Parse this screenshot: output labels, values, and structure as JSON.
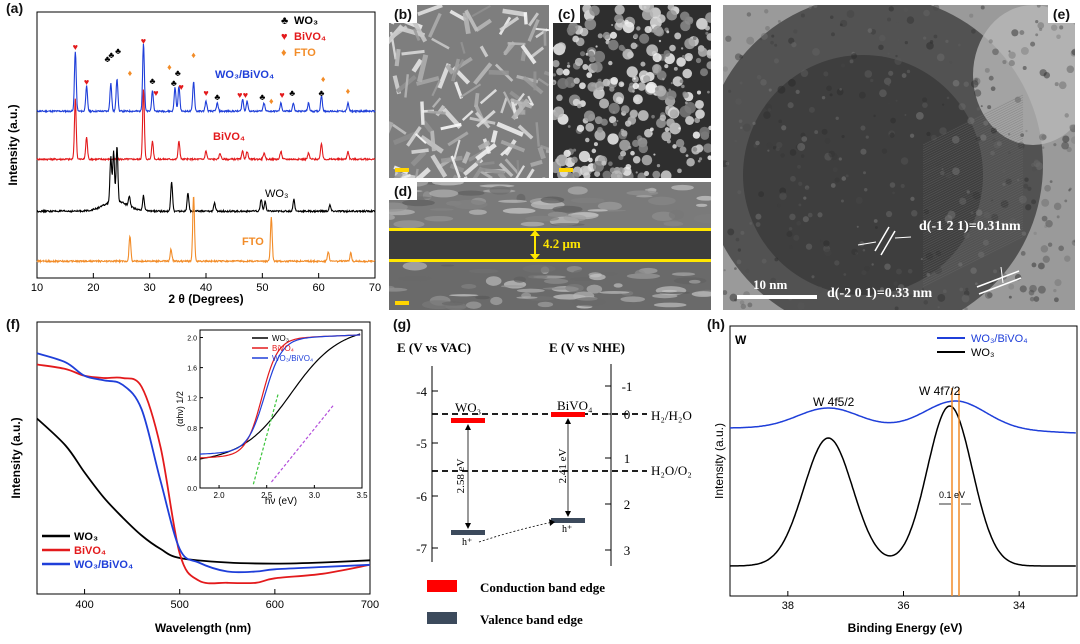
{
  "panels": {
    "a": {
      "label": "(a)",
      "xlabel": "2 θ (Degrees)",
      "ylabel": "Intensity (a.u.)",
      "xticks": [
        "10",
        "20",
        "30",
        "40",
        "50",
        "60",
        "70"
      ],
      "legend": [
        "WO₃",
        "BiVO₄",
        "FTO"
      ],
      "curve_labels": [
        "WO₃/BiVO₄",
        "BiVO₄",
        "WO₃",
        "FTO"
      ]
    },
    "b": {
      "label": "(b)"
    },
    "c": {
      "label": "(c)"
    },
    "d": {
      "label": "(d)",
      "thickness": "4.2 μm"
    },
    "e": {
      "label": "(e)",
      "scale": "10 nm",
      "d1": "d(-1 2 1)=0.31nm",
      "d2": "d(-2 0 1)=0.33 nm"
    },
    "f": {
      "label": "(f)",
      "xlabel": "Wavelength (nm)",
      "ylabel": "Intensity (a.u.)",
      "xticks": [
        "400",
        "500",
        "600",
        "700"
      ],
      "legend": [
        "WO₃",
        "BiVO₄",
        "WO₃/BiVO₄"
      ],
      "inset": {
        "xlabel": "hν (eV)",
        "ylabel": "(αhν) 1/2",
        "xticks": [
          "2.0",
          "2.5",
          "3.0",
          "3.5"
        ],
        "yticks": [
          "0.0",
          "0.4",
          "0.8",
          "1.2",
          "1.6",
          "2.0"
        ],
        "legend": [
          "WO₃",
          "BiVO₄",
          "WO₃/BiVO₄"
        ]
      }
    },
    "g": {
      "label": "(g)",
      "left_axis": "E (V vs VAC)",
      "right_axis": "E (V vs NHE)",
      "left_ticks": [
        "-4",
        "-5",
        "-6",
        "-7"
      ],
      "right_ticks": [
        "-1",
        "0",
        "1",
        "2",
        "3"
      ],
      "level1": "H₂/H₂O",
      "level2": "H₂O/O₂",
      "mat1": "WO₃",
      "mat2": "BiVO₄",
      "gap1": "2.58 eV",
      "gap2": "2.41 eV",
      "hole": "h⁺",
      "cb_legend": "Conduction band edge",
      "vb_legend": "Valence band edge",
      "colors": {
        "cb": "#ff0000",
        "vb": "#3c4a5c"
      }
    },
    "h": {
      "label": "(h)",
      "corner": "W",
      "xlabel": "Binding Energy (eV)",
      "ylabel": "Intensity (a.u.)",
      "xticks": [
        "38",
        "36",
        "34"
      ],
      "legend": [
        "WO₃/BiVO₄",
        "WO₃"
      ],
      "peak1": "W 4f5/2",
      "peak2": "W 4f7/2",
      "shift": "0.1 eV"
    }
  },
  "chart_data": [
    {
      "type": "line",
      "panel": "a",
      "xlabel": "2 θ (Degrees)",
      "ylabel": "Intensity (a.u.)",
      "xlim": [
        10,
        70
      ],
      "series": [
        {
          "name": "WO₃/BiVO₄",
          "peaks_2theta": [
            16.8,
            18.8,
            23.1,
            24.2,
            28.9,
            30.5,
            34.5,
            35.2,
            37.8,
            40,
            42,
            46.5,
            47.3,
            50.3,
            53.3,
            55.5,
            58.2,
            60.5,
            65.2
          ]
        },
        {
          "name": "BiVO₄",
          "peaks_2theta": [
            16.8,
            18.8,
            28.9,
            30.5,
            35.2,
            40,
            42.5,
            46.5,
            47.3,
            50.3,
            53.3,
            58.2,
            60.5,
            65.2
          ]
        },
        {
          "name": "WO₃",
          "peaks_2theta": [
            23.1,
            23.6,
            24.2,
            26.4,
            28.9,
            33.9,
            36.8,
            41.5,
            49.8,
            50.5,
            55.6,
            62
          ]
        },
        {
          "name": "FTO",
          "peaks_2theta": [
            26.5,
            33.8,
            37.8,
            51.6,
            61.7,
            65.7
          ]
        }
      ]
    },
    {
      "type": "line",
      "panel": "f",
      "xlabel": "Wavelength (nm)",
      "ylabel": "Intensity (a.u.)",
      "xlim": [
        350,
        700
      ],
      "series": [
        {
          "name": "WO₃",
          "x": [
            350,
            380,
            400,
            420,
            440,
            460,
            480,
            500,
            550,
            600,
            650,
            700
          ],
          "y": [
            0.78,
            0.66,
            0.54,
            0.43,
            0.34,
            0.26,
            0.2,
            0.16,
            0.14,
            0.135,
            0.14,
            0.15
          ]
        },
        {
          "name": "BiVO₄",
          "x": [
            350,
            380,
            400,
            420,
            440,
            460,
            480,
            500,
            520,
            550,
            580,
            600,
            650,
            700
          ],
          "y": [
            1.02,
            1.0,
            0.97,
            0.96,
            0.96,
            0.92,
            0.65,
            0.18,
            0.06,
            0.05,
            0.05,
            0.07,
            0.09,
            0.13
          ]
        },
        {
          "name": "WO₃/BiVO₄",
          "x": [
            350,
            380,
            400,
            420,
            440,
            460,
            480,
            500,
            520,
            550,
            580,
            600,
            650,
            700
          ],
          "y": [
            1.07,
            1.03,
            0.97,
            0.95,
            0.93,
            0.82,
            0.5,
            0.2,
            0.14,
            0.1,
            0.1,
            0.11,
            0.12,
            0.13
          ]
        }
      ]
    },
    {
      "type": "line",
      "panel": "h",
      "xlabel": "Binding Energy (eV)",
      "ylabel": "Intensity (a.u.)",
      "xlim": [
        39,
        33
      ],
      "series": [
        {
          "name": "WO₃/BiVO₄",
          "peaks_eV": [
            37.3,
            35.1
          ]
        },
        {
          "name": "WO₃",
          "peaks_eV": [
            37.3,
            35.2
          ]
        }
      ]
    }
  ]
}
